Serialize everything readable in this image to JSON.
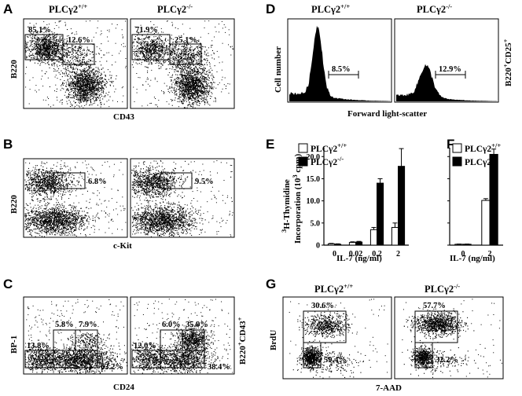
{
  "panels": {
    "A": {
      "label": "A",
      "titles": [
        {
          "base": "PLCγ2",
          "sup": "+/+"
        },
        {
          "base": "PLCγ2",
          "sup": "-/-"
        }
      ],
      "ylabel": "B220",
      "xlabel": "CD43",
      "gates": [
        [
          "85.1%",
          "12.6%"
        ],
        [
          "71.9%",
          "25.1%"
        ]
      ]
    },
    "B": {
      "label": "B",
      "ylabel": "B220",
      "xlabel": "c-Kit",
      "gates": [
        [
          "6.8%"
        ],
        [
          "9.5%"
        ]
      ]
    },
    "C": {
      "label": "C",
      "ylabel": "BP-1",
      "xlabel": "CD24",
      "side_label": {
        "base": "B220",
        "sup1": "+",
        "mid": "CD43",
        "sup2": "+"
      },
      "gates": [
        [
          "5.8%",
          "7.9%",
          "13.8%",
          "63.2%"
        ],
        [
          "6.0%",
          "35.9%",
          "12.0%",
          "38.4%"
        ]
      ]
    },
    "D": {
      "label": "D",
      "titles": [
        {
          "base": "PLCγ2",
          "sup": "+/+"
        },
        {
          "base": "PLCγ2",
          "sup": "-/-"
        }
      ],
      "ylabel": "Cell number",
      "xlabel": "Forward light-scatter",
      "side_label": {
        "base": "B220",
        "sup1": "+",
        "mid": "CD25",
        "sup2": "+"
      },
      "gates": [
        "8.5%",
        "12.9%"
      ]
    },
    "E": {
      "label": "E",
      "ylabel_line1": {
        "sup": "3",
        "base": "H-Thymidine"
      },
      "ylabel_line2": {
        "base": "Incorporation (10",
        "sup": "3",
        "tail": " cpm)"
      },
      "xlabel": "IL-7 (ng/ml)",
      "legend": [
        {
          "base": "PLCγ2",
          "sup": "+/+"
        },
        {
          "base": "PLCγ2",
          "sup": "-/-"
        }
      ],
      "yticks": [
        "0",
        "5.0",
        "10.0",
        "15.0",
        "20.0"
      ],
      "xticks": [
        "0",
        "0.02",
        "0.2",
        "2"
      ]
    },
    "F": {
      "label": "F",
      "xlabel": "IL-7 (ng/ml)",
      "legend": [
        {
          "base": "PLCγ2",
          "sup": "+/+"
        },
        {
          "base": "PLCγ2",
          "sup": "-/-"
        }
      ],
      "xticks": [
        "0",
        "2"
      ]
    },
    "G": {
      "label": "G",
      "titles": [
        {
          "base": "PLCγ2",
          "sup": "+/+"
        },
        {
          "base": "PLCγ2",
          "sup": "-/-"
        }
      ],
      "ylabel": "BrdU",
      "xlabel": "7-AAD",
      "gates": [
        [
          "30.6%",
          "59.4%"
        ],
        [
          "57.7%",
          "32.2%"
        ]
      ]
    }
  },
  "chart_data": [
    {
      "panel": "E",
      "type": "bar",
      "categories": [
        "0",
        "0.02",
        "0.2",
        "2"
      ],
      "series": [
        {
          "name": "PLCγ2+/+",
          "values": [
            0.3,
            0.6,
            3.5,
            4.0
          ],
          "errors": [
            0.1,
            0.15,
            0.5,
            1.0
          ]
        },
        {
          "name": "PLCγ2-/-",
          "values": [
            0.2,
            0.7,
            14.0,
            17.8
          ],
          "errors": [
            0.1,
            0.15,
            1.0,
            4.0
          ]
        }
      ],
      "ylim": [
        0,
        22
      ],
      "xlabel": "IL-7 (ng/ml)",
      "ylabel": "3H-Thymidine Incorporation (103 cpm)"
    },
    {
      "panel": "F",
      "type": "bar",
      "categories": [
        "0",
        "2"
      ],
      "series": [
        {
          "name": "PLCγ2+/+",
          "values": [
            0.2,
            10.1
          ],
          "errors": [
            0.05,
            0.4
          ]
        },
        {
          "name": "PLCγ2-/-",
          "values": [
            0.2,
            20.5
          ],
          "errors": [
            0.05,
            1.2
          ]
        }
      ],
      "ylim": [
        0,
        22
      ],
      "xlabel": "IL-7 (ng/ml)"
    }
  ]
}
